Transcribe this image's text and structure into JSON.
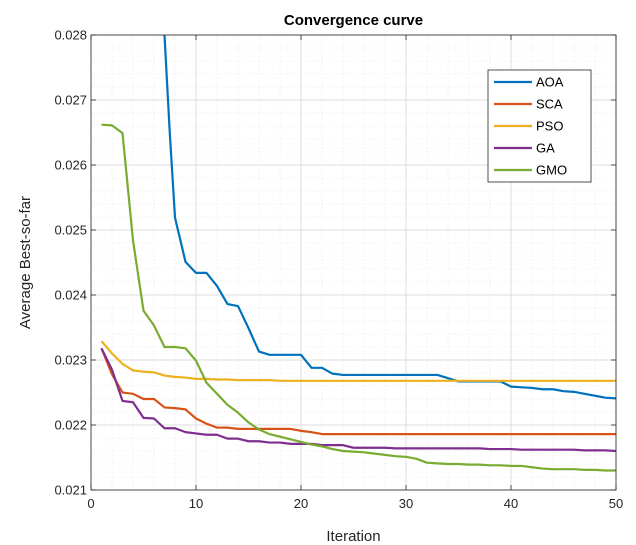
{
  "chart_data": {
    "type": "line",
    "title": "Convergence curve",
    "xlabel": "Iteration",
    "ylabel": "Average Best-so-far",
    "xlim": [
      0,
      50
    ],
    "ylim": [
      0.021,
      0.028
    ],
    "xticks": [
      0,
      10,
      20,
      30,
      40,
      50
    ],
    "yticks": [
      0.021,
      0.022,
      0.023,
      0.024,
      0.025,
      0.026,
      0.027,
      0.028
    ],
    "xtick_labels": [
      "0",
      "10",
      "20",
      "30",
      "40",
      "50"
    ],
    "ytick_labels": [
      "0.021",
      "0.022",
      "0.023",
      "0.024",
      "0.025",
      "0.026",
      "0.027",
      "0.028"
    ],
    "grid": true,
    "minor_grid": true,
    "legend_position": "top-right",
    "series": [
      {
        "name": "AOA",
        "color": "#0072BD",
        "x": [
          7,
          7.5,
          8,
          9,
          10,
          11,
          12,
          13,
          14,
          15,
          16,
          17,
          18,
          19,
          20,
          21,
          22,
          23,
          24,
          25,
          26,
          27,
          28,
          29,
          30,
          31,
          32,
          33,
          34,
          35,
          36,
          37,
          38,
          39,
          40,
          41,
          42,
          43,
          44,
          45,
          46,
          47,
          48,
          49,
          50
        ],
        "y": [
          0.028,
          0.0265,
          0.02519,
          0.02451,
          0.02434,
          0.02434,
          0.02414,
          0.02386,
          0.02383,
          0.02349,
          0.02313,
          0.02308,
          0.02308,
          0.02308,
          0.02308,
          0.02288,
          0.02288,
          0.02279,
          0.02277,
          0.02277,
          0.02277,
          0.02277,
          0.02277,
          0.02277,
          0.02277,
          0.02277,
          0.02277,
          0.02277,
          0.02272,
          0.02267,
          0.02267,
          0.02267,
          0.02267,
          0.02267,
          0.02259,
          0.02258,
          0.02257,
          0.02255,
          0.02255,
          0.02252,
          0.02251,
          0.02248,
          0.02245,
          0.02242,
          0.02241
        ]
      },
      {
        "name": "SCA",
        "color": "#D95319",
        "x": [
          1,
          2,
          3,
          4,
          5,
          6,
          7,
          8,
          9,
          10,
          11,
          12,
          13,
          14,
          15,
          16,
          17,
          18,
          19,
          20,
          21,
          22,
          23,
          24,
          25,
          26,
          27,
          28,
          29,
          30,
          31,
          32,
          33,
          34,
          35,
          36,
          37,
          38,
          39,
          40,
          41,
          42,
          43,
          44,
          45,
          46,
          47,
          48,
          49,
          50
        ],
        "y": [
          0.02318,
          0.02278,
          0.0225,
          0.02248,
          0.0224,
          0.0224,
          0.02227,
          0.02226,
          0.02224,
          0.0221,
          0.02202,
          0.02196,
          0.02196,
          0.02194,
          0.02194,
          0.02194,
          0.02194,
          0.02194,
          0.02194,
          0.02191,
          0.02189,
          0.02186,
          0.02186,
          0.02186,
          0.02186,
          0.02186,
          0.02186,
          0.02186,
          0.02186,
          0.02186,
          0.02186,
          0.02186,
          0.02186,
          0.02186,
          0.02186,
          0.02186,
          0.02186,
          0.02186,
          0.02186,
          0.02186,
          0.02186,
          0.02186,
          0.02186,
          0.02186,
          0.02186,
          0.02186,
          0.02186,
          0.02186,
          0.02186,
          0.02186
        ]
      },
      {
        "name": "PSO",
        "color": "#EDB120",
        "x": [
          1,
          2,
          3,
          4,
          5,
          6,
          7,
          8,
          9,
          10,
          11,
          12,
          13,
          14,
          15,
          16,
          17,
          18,
          19,
          20,
          25,
          30,
          35,
          40,
          45,
          50
        ],
        "y": [
          0.02329,
          0.0231,
          0.02294,
          0.02284,
          0.02282,
          0.02281,
          0.02276,
          0.02274,
          0.02273,
          0.02271,
          0.02271,
          0.0227,
          0.0227,
          0.02269,
          0.02269,
          0.02269,
          0.02269,
          0.02268,
          0.02268,
          0.02268,
          0.02268,
          0.02268,
          0.02268,
          0.02268,
          0.02268,
          0.02268
        ]
      },
      {
        "name": "GA",
        "color": "#7E2F8E",
        "x": [
          1,
          2,
          3,
          4,
          5,
          6,
          7,
          8,
          9,
          10,
          11,
          12,
          13,
          14,
          15,
          16,
          17,
          18,
          19,
          20,
          21,
          22,
          23,
          24,
          25,
          26,
          27,
          28,
          29,
          30,
          31,
          32,
          33,
          34,
          35,
          36,
          37,
          38,
          39,
          40,
          41,
          42,
          43,
          44,
          45,
          46,
          47,
          48,
          49,
          50
        ],
        "y": [
          0.02318,
          0.02285,
          0.02237,
          0.02235,
          0.02211,
          0.0221,
          0.02195,
          0.02195,
          0.02189,
          0.02187,
          0.02185,
          0.02185,
          0.02179,
          0.02179,
          0.02175,
          0.02175,
          0.02173,
          0.02173,
          0.02171,
          0.02171,
          0.02171,
          0.02169,
          0.02169,
          0.02169,
          0.02165,
          0.02165,
          0.02165,
          0.02165,
          0.02164,
          0.02164,
          0.02164,
          0.02164,
          0.02164,
          0.02164,
          0.02164,
          0.02164,
          0.02164,
          0.02163,
          0.02163,
          0.02163,
          0.02162,
          0.02162,
          0.02162,
          0.02162,
          0.02162,
          0.02162,
          0.02161,
          0.02161,
          0.02161,
          0.0216
        ]
      },
      {
        "name": "GMO",
        "color": "#77AC30",
        "x": [
          1,
          2,
          3,
          4,
          5,
          6,
          7,
          8,
          9,
          10,
          11,
          12,
          13,
          14,
          15,
          16,
          17,
          18,
          19,
          20,
          21,
          22,
          23,
          24,
          25,
          26,
          27,
          28,
          29,
          30,
          31,
          32,
          33,
          34,
          35,
          36,
          37,
          38,
          39,
          40,
          41,
          42,
          43,
          44,
          45,
          46,
          47,
          48,
          49,
          50
        ],
        "y": [
          0.02662,
          0.02661,
          0.02649,
          0.02484,
          0.02376,
          0.02353,
          0.0232,
          0.0232,
          0.02318,
          0.02299,
          0.02265,
          0.02248,
          0.02231,
          0.02219,
          0.02204,
          0.02193,
          0.02186,
          0.02182,
          0.02178,
          0.02174,
          0.0217,
          0.02167,
          0.02163,
          0.0216,
          0.02159,
          0.02158,
          0.02156,
          0.02154,
          0.02152,
          0.02151,
          0.02148,
          0.02142,
          0.02141,
          0.0214,
          0.0214,
          0.02139,
          0.02139,
          0.02138,
          0.02138,
          0.02137,
          0.02137,
          0.02135,
          0.02133,
          0.02132,
          0.02132,
          0.02132,
          0.02131,
          0.02131,
          0.0213,
          0.0213
        ]
      }
    ]
  }
}
